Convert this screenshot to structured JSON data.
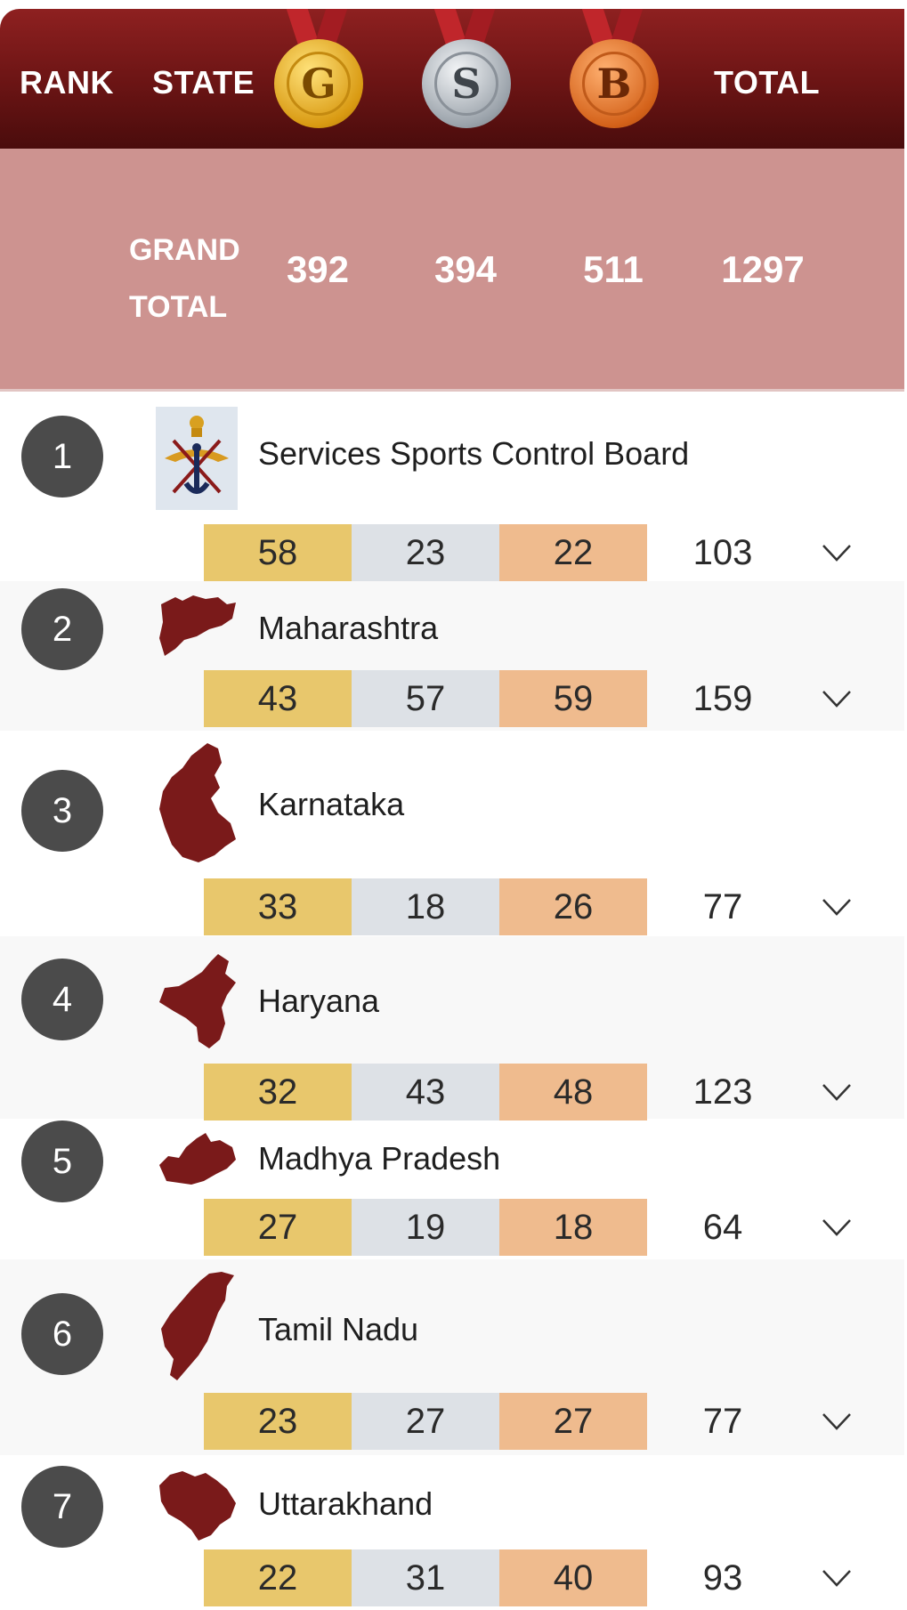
{
  "header": {
    "rank_label": "RANK",
    "state_label": "STATE",
    "gold_letter": "G",
    "silver_letter": "S",
    "bronze_letter": "B",
    "total_label": "TOTAL"
  },
  "grand_total": {
    "label_line1": "GRAND",
    "label_line2": "TOTAL",
    "gold": "392",
    "silver": "394",
    "bronze": "511",
    "total": "1297"
  },
  "colors": {
    "header_red": "#6a1414",
    "grand_band": "#cd9390",
    "gold_cell": "#e8c76c",
    "silver_cell": "#dde1e6",
    "bronze_cell": "#efbb8e",
    "rank_circle": "#4b4b4b",
    "map_maroon": "#7a1a1a"
  },
  "rows": [
    {
      "rank": "1",
      "state": "Services Sports Control Board",
      "icon": "services-emblem-icon",
      "gold": "58",
      "silver": "23",
      "bronze": "22",
      "total": "103"
    },
    {
      "rank": "2",
      "state": "Maharashtra",
      "icon": "maharashtra-map-icon",
      "gold": "43",
      "silver": "57",
      "bronze": "59",
      "total": "159"
    },
    {
      "rank": "3",
      "state": "Karnataka",
      "icon": "karnataka-map-icon",
      "gold": "33",
      "silver": "18",
      "bronze": "26",
      "total": "77"
    },
    {
      "rank": "4",
      "state": "Haryana",
      "icon": "haryana-map-icon",
      "gold": "32",
      "silver": "43",
      "bronze": "48",
      "total": "123"
    },
    {
      "rank": "5",
      "state": "Madhya Pradesh",
      "icon": "madhya-pradesh-map-icon",
      "gold": "27",
      "silver": "19",
      "bronze": "18",
      "total": "64"
    },
    {
      "rank": "6",
      "state": "Tamil Nadu",
      "icon": "tamil-nadu-map-icon",
      "gold": "23",
      "silver": "27",
      "bronze": "27",
      "total": "77"
    },
    {
      "rank": "7",
      "state": "Uttarakhand",
      "icon": "uttarakhand-map-icon",
      "gold": "22",
      "silver": "31",
      "bronze": "40",
      "total": "93"
    }
  ]
}
